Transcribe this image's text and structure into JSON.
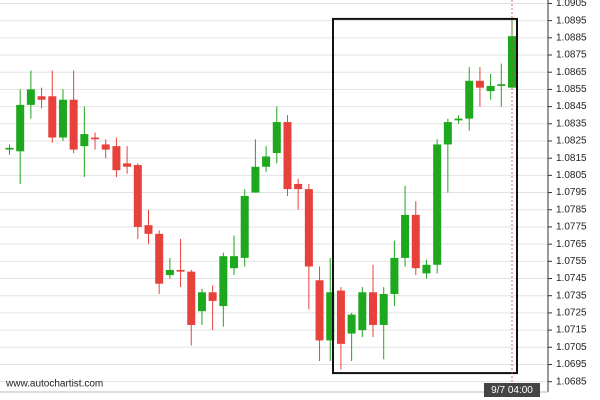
{
  "chart_data": {
    "type": "candlestick",
    "x": [
      null,
      null,
      null,
      null,
      null,
      null,
      null,
      null,
      null,
      null,
      null,
      null,
      null,
      null,
      null,
      null,
      null,
      null,
      null,
      null,
      null,
      null,
      null,
      null,
      null,
      null,
      null,
      null,
      null,
      null,
      null,
      null,
      null,
      null,
      null,
      null,
      null,
      null,
      null,
      null,
      null,
      null,
      null,
      null,
      null,
      null,
      null,
      "9/7 04:00"
    ],
    "open": [
      1.082,
      1.0819,
      1.0846,
      1.0851,
      1.0851,
      1.0827,
      1.0849,
      1.0822,
      1.0827,
      1.0823,
      1.0822,
      1.0812,
      1.0811,
      1.0776,
      1.0771,
      1.0747,
      1.075,
      1.0749,
      1.0726,
      1.0737,
      1.0729,
      1.0751,
      1.0757,
      1.0795,
      1.081,
      1.0818,
      1.0836,
      1.08,
      1.0797,
      1.0744,
      1.0709,
      1.0738,
      1.0713,
      1.0715,
      1.0737,
      1.0718,
      1.0736,
      1.0757,
      1.0782,
      1.0748,
      1.0753,
      1.0823,
      1.0837,
      1.0838,
      1.086,
      1.0854,
      1.0857,
      1.0856
    ],
    "high": [
      1.0823,
      1.0855,
      1.0866,
      1.0856,
      1.0866,
      1.0855,
      1.0866,
      1.0845,
      1.083,
      1.0826,
      1.0827,
      1.0822,
      1.0812,
      1.0785,
      1.0773,
      1.0757,
      1.0768,
      1.075,
      1.0739,
      1.0741,
      1.076,
      1.077,
      1.0797,
      1.0826,
      1.0822,
      1.0845,
      1.084,
      1.0803,
      1.08,
      1.0752,
      1.0757,
      1.074,
      1.0725,
      1.074,
      1.0753,
      1.074,
      1.0767,
      1.0799,
      1.079,
      1.0756,
      1.0826,
      1.0838,
      1.084,
      1.0868,
      1.0868,
      1.0864,
      1.087,
      1.0896
    ],
    "low": [
      1.0817,
      1.08,
      1.0838,
      1.0844,
      1.0824,
      1.0825,
      1.0818,
      1.0804,
      1.082,
      1.0815,
      1.0804,
      1.0806,
      1.0768,
      1.0765,
      1.0736,
      1.0745,
      1.074,
      1.0706,
      1.0718,
      1.0715,
      1.0717,
      1.0747,
      1.0752,
      1.0795,
      1.0807,
      1.0812,
      1.0793,
      1.0785,
      1.0727,
      1.0697,
      1.0697,
      1.0692,
      1.0697,
      1.0711,
      1.0711,
      1.0698,
      1.0729,
      1.0752,
      1.0747,
      1.0745,
      1.0748,
      1.0795,
      1.0835,
      1.0831,
      1.0845,
      1.0849,
      1.0845,
      1.0856
    ],
    "close": [
      1.0821,
      1.0846,
      1.0855,
      1.0849,
      1.0827,
      1.0849,
      1.082,
      1.0829,
      1.0826,
      1.082,
      1.0808,
      1.081,
      1.0775,
      1.0771,
      1.0742,
      1.075,
      1.0749,
      1.0718,
      1.0737,
      1.0732,
      1.0758,
      1.0758,
      1.0793,
      1.081,
      1.0816,
      1.0836,
      1.0797,
      1.0797,
      1.0752,
      1.0709,
      1.0737,
      1.0707,
      1.0724,
      1.0737,
      1.0718,
      1.0736,
      1.0757,
      1.0782,
      1.0751,
      1.0753,
      1.0823,
      1.0836,
      1.0838,
      1.086,
      1.0856,
      1.0857,
      1.0858,
      1.0886
    ],
    "up_color": "#1ea81e",
    "down_color": "#e8413c",
    "ylim": [
      1.0679,
      1.0907
    ],
    "yticks": [
      1.0905,
      1.0895,
      1.0885,
      1.0875,
      1.0865,
      1.0855,
      1.0845,
      1.0835,
      1.0825,
      1.0815,
      1.0805,
      1.0795,
      1.0785,
      1.0775,
      1.0765,
      1.0755,
      1.0745,
      1.0735,
      1.0725,
      1.0715,
      1.0705,
      1.0695,
      1.0685
    ],
    "grid": true,
    "highlight": {
      "high": 1.0896,
      "low": 1.069
    },
    "source": "www.autochartist.com"
  }
}
